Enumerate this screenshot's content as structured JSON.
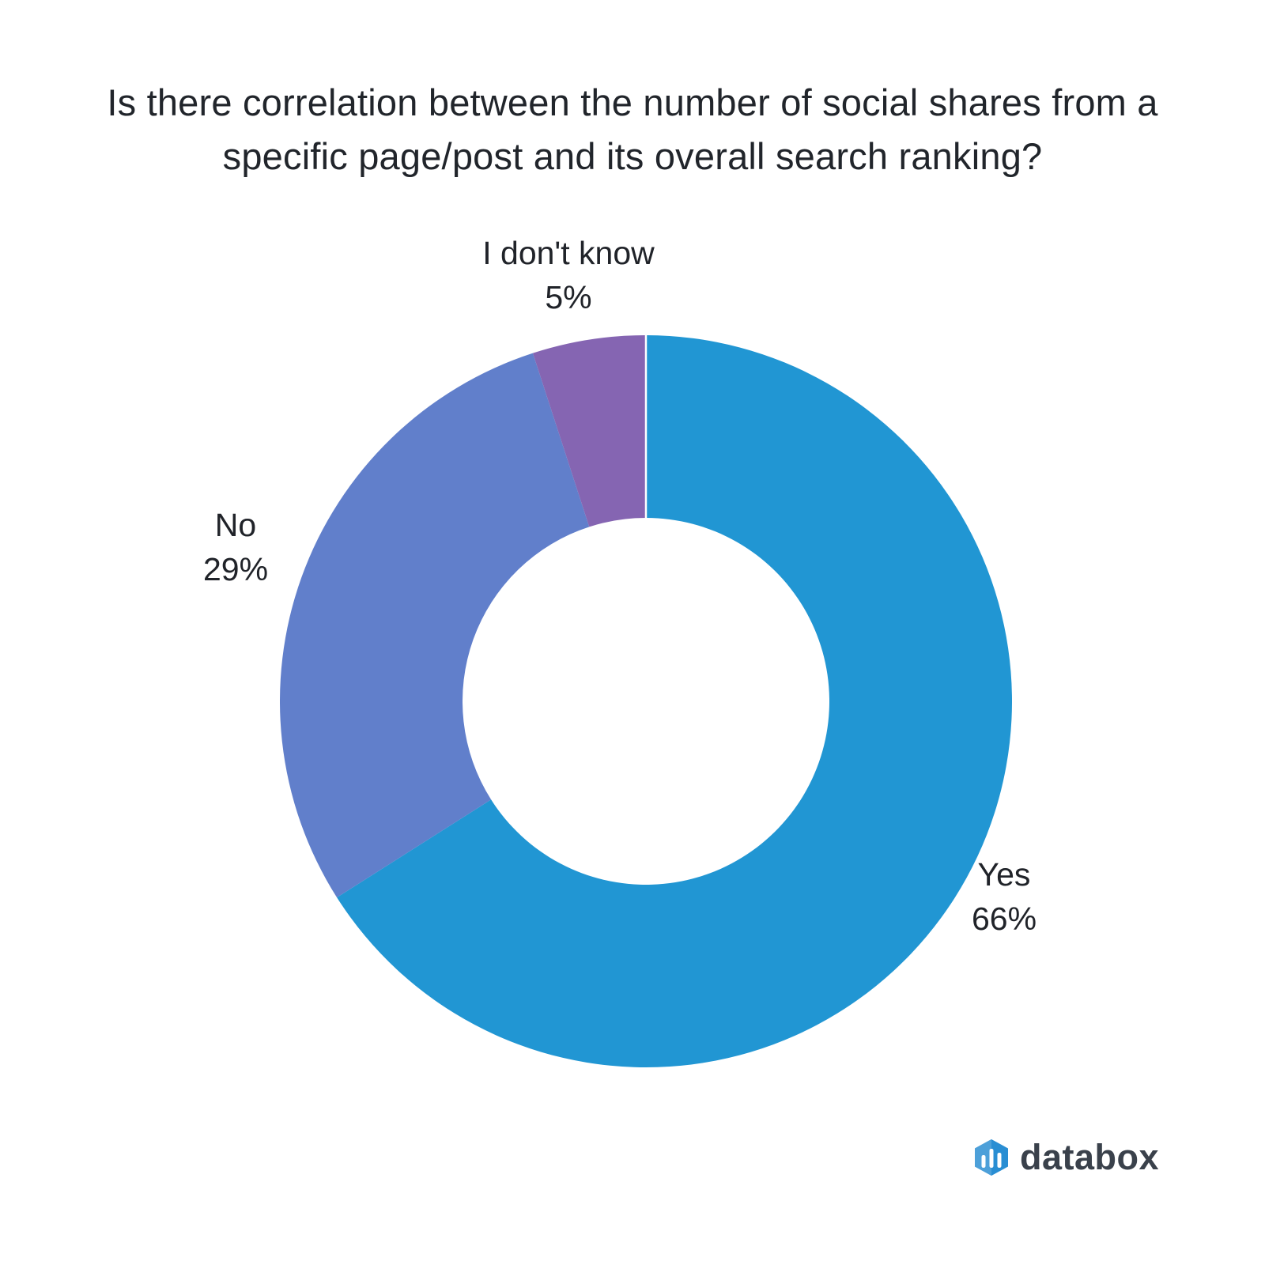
{
  "title": "Is there correlation between the number of social shares from a\nspecific page/post and its overall search ranking?",
  "chart_data": {
    "type": "pie",
    "subtype": "donut",
    "title": "Is there correlation between the number of social shares from a specific page/post and its overall search ranking?",
    "segments": [
      {
        "label": "Yes",
        "value": 66,
        "display_value": "66%",
        "color": "#2196d3"
      },
      {
        "label": "No",
        "value": 29,
        "display_value": "29%",
        "color": "#617fcb"
      },
      {
        "label": "I don't know",
        "value": 5,
        "display_value": "5%",
        "color": "#8565b2"
      }
    ],
    "start_angle_deg": 0,
    "direction": "clockwise",
    "donut_hole_ratio": 0.5,
    "slice_divider_color": "#ffffff",
    "legend_position": "none",
    "label_style": "outside"
  },
  "branding": {
    "logo_text": "databox",
    "logo_text_color": "#3a414b",
    "logo_icon": "databox-hexagon-bars-icon",
    "icon_left_color": "#4da0d9",
    "icon_right_color": "#298ed3",
    "icon_bar_color": "#ffffff"
  }
}
